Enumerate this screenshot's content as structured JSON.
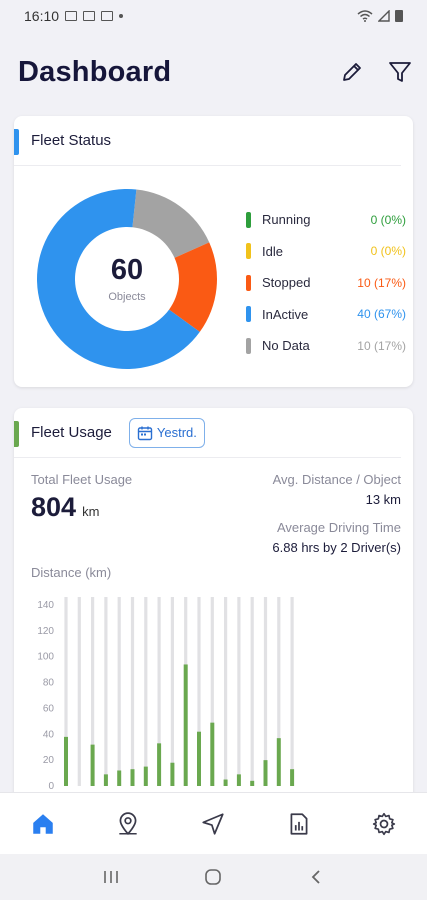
{
  "status_bar": {
    "time": "16:10"
  },
  "header": {
    "title": "Dashboard"
  },
  "fleet_status": {
    "title": "Fleet Status",
    "total": "60",
    "total_label": "Objects",
    "items": [
      {
        "name": "Running",
        "value": "0 (0%)",
        "color": "#2e9e3c",
        "count": 0
      },
      {
        "name": "Idle",
        "value": "0 (0%)",
        "color": "#f1c21b",
        "count": 0
      },
      {
        "name": "Stopped",
        "value": "10 (17%)",
        "color": "#fa5a14",
        "count": 10
      },
      {
        "name": "InActive",
        "value": "40 (67%)",
        "color": "#2f93ee",
        "count": 40
      },
      {
        "name": "No Data",
        "value": "10 (17%)",
        "color": "#a3a3a3",
        "count": 10
      }
    ]
  },
  "fleet_usage": {
    "title": "Fleet Usage",
    "period_label": "Yestrd.",
    "total_label": "Total Fleet Usage",
    "total_value": "804",
    "total_unit": "km",
    "avg_distance_label": "Avg. Distance / Object",
    "avg_distance_value": "13 km",
    "avg_time_label": "Average Driving Time",
    "avg_time_value": "6.88 hrs by 2 Driver(s)",
    "chart_label": "Distance (km)"
  },
  "chart_data": {
    "type": "bar",
    "ylabel": "Distance (km)",
    "ylim": [
      0,
      140
    ],
    "yticks": [
      140,
      120,
      100,
      80,
      60,
      40,
      20,
      0
    ],
    "bar_color": "#6aa84f",
    "background_bar_color": "#e1e1e4",
    "values": [
      38,
      0,
      32,
      9,
      12,
      13,
      15,
      33,
      18,
      94,
      42,
      49,
      5,
      9,
      4,
      20,
      37,
      13
    ]
  },
  "nav": [
    "home-icon",
    "location-icon",
    "navigate-icon",
    "report-icon",
    "settings-icon"
  ],
  "colors": {
    "accent_blue": "#2f93ee",
    "accent_green": "#6aa84f",
    "active_nav": "#2a7ff0"
  }
}
